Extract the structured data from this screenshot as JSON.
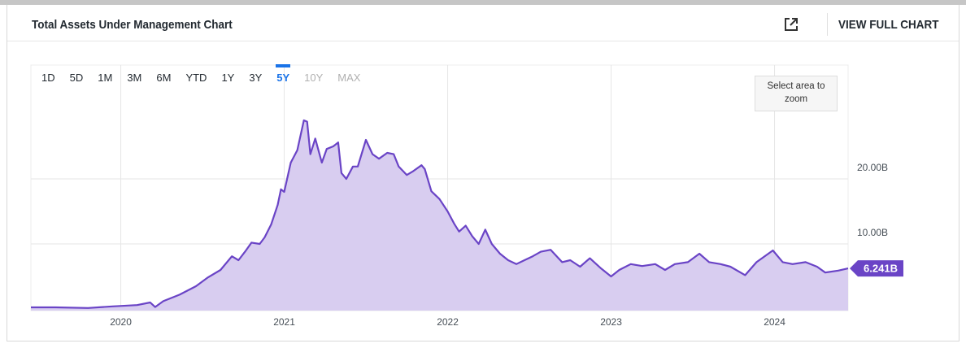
{
  "header": {
    "action": "VIEW FULL CHART"
  },
  "range_buttons": {
    "options": [
      "1D",
      "5D",
      "1M",
      "3M",
      "6M",
      "YTD",
      "1Y",
      "3Y",
      "5Y",
      "10Y",
      "MAX"
    ],
    "selected": "5Y",
    "disabled": [
      "10Y",
      "MAX"
    ]
  },
  "zoom_hint": "Select area to zoom",
  "current_value": {
    "value": 6.241,
    "label": "6.241B"
  },
  "chart_data": {
    "type": "area",
    "title": "Total Assets Under Management Chart",
    "x": [
      2019.45,
      2019.6,
      2019.8,
      2019.95,
      2020.1,
      2020.18,
      2020.21,
      2020.26,
      2020.36,
      2020.46,
      2020.53,
      2020.61,
      2020.68,
      2020.72,
      2020.76,
      2020.8,
      2020.85,
      2020.88,
      2020.92,
      2020.96,
      2020.98,
      2021.0,
      2021.04,
      2021.08,
      2021.12,
      2021.14,
      2021.16,
      2021.19,
      2021.23,
      2021.26,
      2021.3,
      2021.33,
      2021.35,
      2021.38,
      2021.42,
      2021.45,
      2021.5,
      2021.54,
      2021.58,
      2021.63,
      2021.67,
      2021.7,
      2021.75,
      2021.79,
      2021.84,
      2021.86,
      2021.9,
      2021.95,
      2022.0,
      2022.04,
      2022.07,
      2022.11,
      2022.15,
      2022.19,
      2022.23,
      2022.27,
      2022.32,
      2022.37,
      2022.42,
      2022.47,
      2022.52,
      2022.57,
      2022.63,
      2022.7,
      2022.75,
      2022.81,
      2022.87,
      2022.94,
      2023.0,
      2023.05,
      2023.12,
      2023.19,
      2023.27,
      2023.33,
      2023.39,
      2023.47,
      2023.54,
      2023.6,
      2023.67,
      2023.73,
      2023.82,
      2023.89,
      2023.99,
      2024.05,
      2024.11,
      2024.19,
      2024.26,
      2024.31,
      2024.39,
      2024.45
    ],
    "series": [
      {
        "color": "#6a44c6",
        "fill": "#d8cdf0",
        "values": [
          0.25,
          0.25,
          0.15,
          0.4,
          0.6,
          1.0,
          0.3,
          1.2,
          2.2,
          3.5,
          4.8,
          6.0,
          8.1,
          7.5,
          8.8,
          10.2,
          10.0,
          11.0,
          13.0,
          16.0,
          18.4,
          18.0,
          22.5,
          24.4,
          29.0,
          28.8,
          23.8,
          26.2,
          22.5,
          24.6,
          25.0,
          25.6,
          20.9,
          20.0,
          21.9,
          21.9,
          26.0,
          23.8,
          23.1,
          24.0,
          23.8,
          21.9,
          20.6,
          21.2,
          22.1,
          21.5,
          18.1,
          16.9,
          15.0,
          13.1,
          11.9,
          12.8,
          11.2,
          10.0,
          12.2,
          10.0,
          8.5,
          7.5,
          6.9,
          7.5,
          8.1,
          8.8,
          9.1,
          7.2,
          7.5,
          6.5,
          7.8,
          6.2,
          5.0,
          6.0,
          6.9,
          6.6,
          6.9,
          6.0,
          6.9,
          7.2,
          8.5,
          7.2,
          6.9,
          6.5,
          5.2,
          7.2,
          9.0,
          7.2,
          6.9,
          7.2,
          6.5,
          5.6,
          5.9,
          6.241
        ]
      }
    ],
    "xlim": [
      2019.45,
      2024.45
    ],
    "xticks": [
      2020,
      2021,
      2022,
      2023,
      2024
    ],
    "ylim": [
      -0.25,
      37.5
    ],
    "yticks": [
      {
        "value": 10,
        "label": "10.00B"
      },
      {
        "value": 20,
        "label": "20.00B"
      }
    ],
    "grid": true
  }
}
